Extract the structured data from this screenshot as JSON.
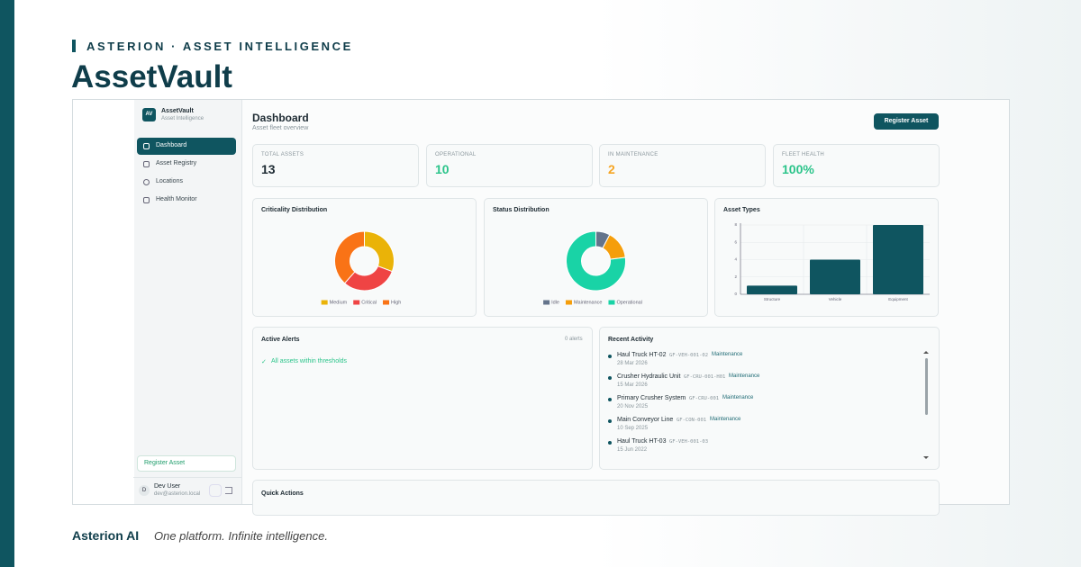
{
  "brand": {
    "eyebrow": "ASTERION · ASSET INTELLIGENCE",
    "title": "AssetVault"
  },
  "app": {
    "sidebar": {
      "logo": "AV",
      "name": "AssetVault",
      "tagline": "Asset Intelligence",
      "nav": [
        "Dashboard",
        "Asset Registry",
        "Locations",
        "Health Monitor"
      ],
      "register": "Register Asset",
      "user": {
        "initial": "D",
        "name": "Dev User",
        "email": "dev@asterion.local"
      }
    },
    "header": {
      "title": "Dashboard",
      "subtitle": "Asset fleet overview",
      "button": "Register Asset"
    },
    "stats": [
      {
        "label": "TOTAL ASSETS",
        "value": "13"
      },
      {
        "label": "OPERATIONAL",
        "value": "10"
      },
      {
        "label": "IN MAINTENANCE",
        "value": "2"
      },
      {
        "label": "FLEET HEALTH",
        "value": "100%"
      }
    ],
    "alerts": {
      "title": "Active Alerts",
      "count": "0 alerts",
      "message": "All assets within thresholds"
    },
    "activity": {
      "title": "Recent Activity",
      "items": [
        {
          "name": "Haul Truck HT-02",
          "code": "GF-VEH-001-02",
          "tag": "Maintenance",
          "date": "28 Mar 2026"
        },
        {
          "name": "Crusher Hydraulic Unit",
          "code": "GF-CRU-001-H01",
          "tag": "Maintenance",
          "date": "15 Mar 2026"
        },
        {
          "name": "Primary Crusher System",
          "code": "GF-CRU-001",
          "tag": "Maintenance",
          "date": "20 Nov 2025"
        },
        {
          "name": "Main Conveyor Line",
          "code": "GF-CON-001",
          "tag": "Maintenance",
          "date": "10 Sep 2025"
        },
        {
          "name": "Haul Truck HT-03",
          "code": "GF-VEH-001-03",
          "date": "15 Jun 2022"
        }
      ]
    },
    "quick_actions": "Quick Actions"
  },
  "chart_data": [
    {
      "type": "pie",
      "title": "Criticality Distribution",
      "categories": [
        "Medium",
        "Critical",
        "High"
      ],
      "values": [
        4,
        4,
        5
      ],
      "colors": [
        "#eab308",
        "#ef4444",
        "#f97316"
      ],
      "legend": "bottom"
    },
    {
      "type": "pie",
      "title": "Status Distribution",
      "categories": [
        "Idle",
        "Maintenance",
        "Operational"
      ],
      "values": [
        1,
        2,
        10
      ],
      "colors": [
        "#64748b",
        "#f59e0b",
        "#19d3a6"
      ],
      "legend": "bottom"
    },
    {
      "type": "bar",
      "title": "Asset Types",
      "categories": [
        "Structure",
        "Vehicle",
        "Equipment"
      ],
      "values": [
        1,
        4,
        8
      ],
      "color": "#0f5560",
      "ylim": [
        0,
        8
      ],
      "yticks": [
        0,
        2,
        4,
        6,
        8
      ],
      "grid": true
    }
  ],
  "footer": {
    "name": "Asterion AI",
    "tagline": "One platform. Infinite intelligence."
  }
}
